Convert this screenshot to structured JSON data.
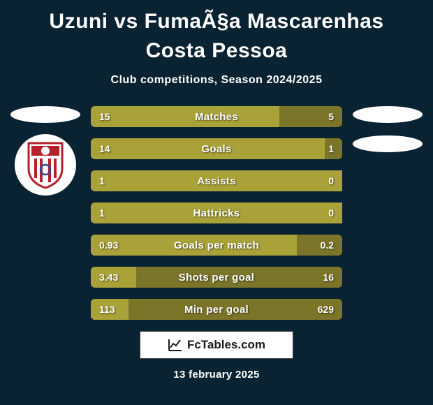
{
  "title": "Uzuni vs FumaÃ§a Mascarenhas Costa Pessoa",
  "subtitle": "Club competitions, Season 2024/2025",
  "colors": {
    "background": "#0a2332",
    "bar_base": "#a9a238",
    "bar_left": "#a9a238",
    "bar_right_dark": "#7a7529",
    "text": "#ffffff"
  },
  "club_logo": {
    "stroke": "#b5202a",
    "fill_top": "#ffffff",
    "stripe": "#b5202a"
  },
  "bars": [
    {
      "label": "Matches",
      "left": "15",
      "right": "5",
      "left_pct": 75,
      "right_pct": 25
    },
    {
      "label": "Goals",
      "left": "14",
      "right": "1",
      "left_pct": 93,
      "right_pct": 7
    },
    {
      "label": "Assists",
      "left": "1",
      "right": "0",
      "left_pct": 100,
      "right_pct": 0
    },
    {
      "label": "Hattricks",
      "left": "1",
      "right": "0",
      "left_pct": 100,
      "right_pct": 0
    },
    {
      "label": "Goals per match",
      "left": "0.93",
      "right": "0.2",
      "left_pct": 82,
      "right_pct": 18
    },
    {
      "label": "Shots per goal",
      "left": "3.43",
      "right": "16",
      "left_pct": 18,
      "right_pct": 82
    },
    {
      "label": "Min per goal",
      "left": "113",
      "right": "629",
      "left_pct": 15,
      "right_pct": 85
    }
  ],
  "footer": {
    "brand": "FcTables.com",
    "date": "13 february 2025"
  }
}
